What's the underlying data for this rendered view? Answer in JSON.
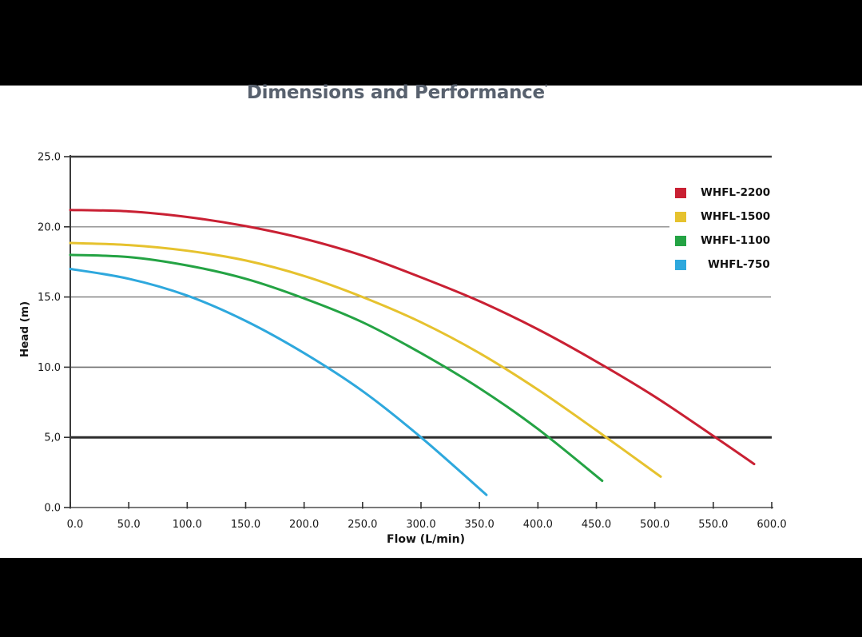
{
  "page": {
    "title": "Dimensions and Performance",
    "title_mark": "'"
  },
  "chart_data": {
    "type": "line",
    "title": "Dimensions and Performance",
    "xlabel": "Flow (L/min)",
    "ylabel": "Head (m)",
    "xlim": [
      0,
      600
    ],
    "ylim": [
      0,
      25
    ],
    "grid": "horizontal gridlines at 5,10,15,20; heavy rules at 5 and 25",
    "legend_position": "upper right",
    "x_tick_values": [
      0,
      50,
      100,
      150,
      200,
      250,
      300,
      350,
      400,
      450,
      500,
      550,
      600
    ],
    "x_tick_labels": [
      "0.0",
      "50.0",
      "100.0",
      "150.0",
      "200.0",
      "250.0",
      "300.0",
      "350.0",
      "400.0",
      "450.0",
      "500.0",
      "550.0",
      "600.0"
    ],
    "y_tick_values": [
      0,
      5,
      10,
      15,
      20,
      25
    ],
    "y_tick_labels": [
      "0.0",
      "5,0",
      "10.0",
      "15.0",
      "20.0",
      "25.0"
    ],
    "series": [
      {
        "name": "WHFL-2200",
        "color": "#c92033",
        "points": [
          [
            0,
            21.2
          ],
          [
            50,
            21.1
          ],
          [
            100,
            20.7
          ],
          [
            150,
            20.05
          ],
          [
            200,
            19.15
          ],
          [
            250,
            17.95
          ],
          [
            300,
            16.4
          ],
          [
            350,
            14.7
          ],
          [
            400,
            12.7
          ],
          [
            450,
            10.4
          ],
          [
            500,
            7.9
          ],
          [
            550,
            5.1
          ],
          [
            585,
            3.1
          ]
        ]
      },
      {
        "name": "WHFL-1500",
        "color": "#e6c22e",
        "points": [
          [
            0,
            18.85
          ],
          [
            50,
            18.7
          ],
          [
            100,
            18.3
          ],
          [
            150,
            17.6
          ],
          [
            200,
            16.5
          ],
          [
            250,
            15.0
          ],
          [
            300,
            13.2
          ],
          [
            350,
            11.0
          ],
          [
            400,
            8.4
          ],
          [
            450,
            5.5
          ],
          [
            505,
            2.2
          ]
        ]
      },
      {
        "name": "WHFL-1100",
        "color": "#24a344",
        "points": [
          [
            0,
            18.0
          ],
          [
            50,
            17.85
          ],
          [
            100,
            17.25
          ],
          [
            150,
            16.3
          ],
          [
            200,
            14.9
          ],
          [
            250,
            13.2
          ],
          [
            300,
            11.0
          ],
          [
            350,
            8.5
          ],
          [
            400,
            5.6
          ],
          [
            455,
            1.9
          ]
        ]
      },
      {
        "name": "WHFL-750",
        "color": "#2ea8dd",
        "points": [
          [
            0,
            17.0
          ],
          [
            50,
            16.3
          ],
          [
            100,
            15.1
          ],
          [
            150,
            13.3
          ],
          [
            200,
            11.0
          ],
          [
            250,
            8.3
          ],
          [
            300,
            5.0
          ],
          [
            356,
            0.9
          ]
        ]
      }
    ]
  }
}
